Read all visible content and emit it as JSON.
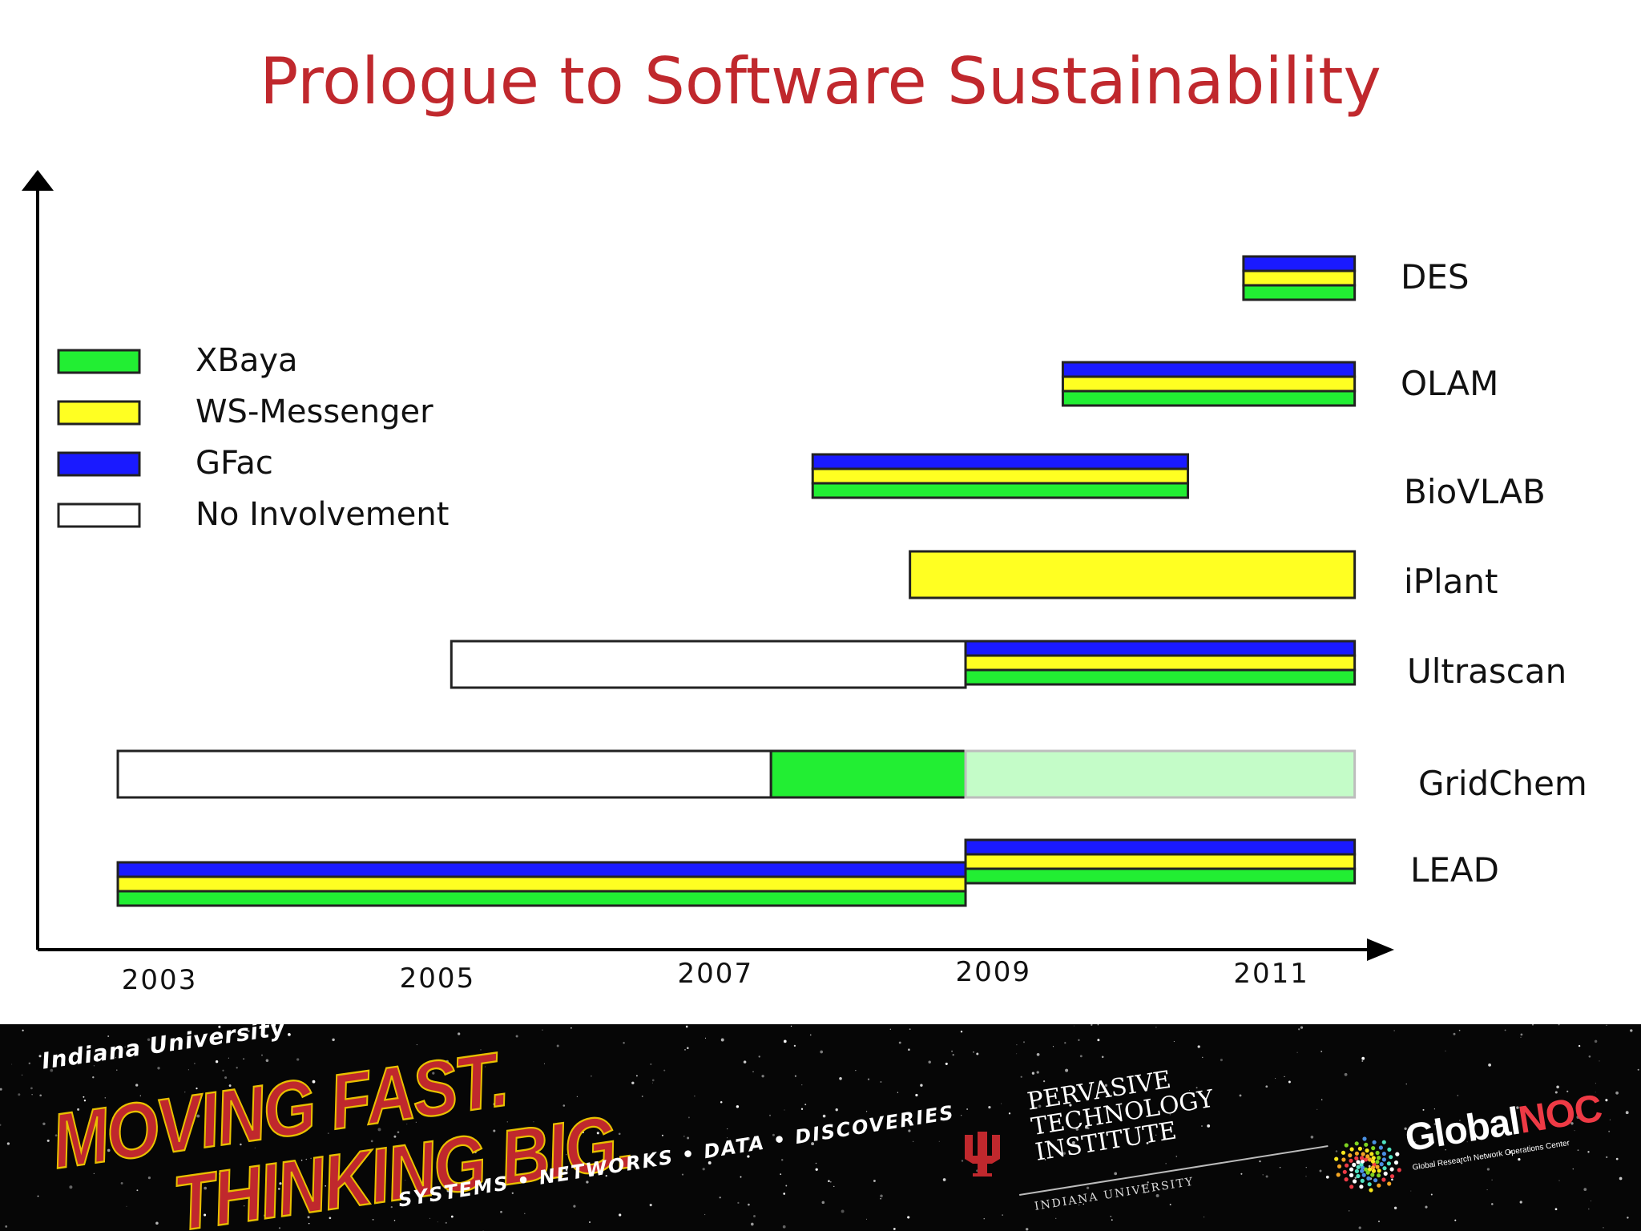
{
  "title": "Prologue to Software Sustainability",
  "colors": {
    "title": "#c0282d",
    "xbaya": "#22ee33",
    "ws_messenger": "#ffff22",
    "gfac": "#1a1aff",
    "no_involvement": "#ffffff",
    "xbaya_faded": "#c4fcc8"
  },
  "chart_data": {
    "type": "gantt",
    "title": "",
    "xlabel": "",
    "ylabel": "",
    "x_ticks": [
      "2003",
      "2005",
      "2007",
      "2009",
      "2011"
    ],
    "xlim": [
      2002.4,
      2011.7
    ],
    "grid": false,
    "legend_position": "top-left",
    "legend": [
      {
        "key": "xbaya",
        "label": "XBaya",
        "color": "#22ee33"
      },
      {
        "key": "ws_messenger",
        "label": "WS-Messenger",
        "color": "#ffff22"
      },
      {
        "key": "gfac",
        "label": "GFac",
        "color": "#1a1aff"
      },
      {
        "key": "none",
        "label": "No Involvement",
        "color": "#ffffff"
      }
    ],
    "projects": [
      {
        "name": "DES",
        "segments": [
          {
            "start": 2010.8,
            "end": 2011.6,
            "components": [
              "gfac",
              "ws_messenger",
              "xbaya"
            ]
          }
        ]
      },
      {
        "name": "OLAM",
        "segments": [
          {
            "start": 2009.5,
            "end": 2011.6,
            "components": [
              "gfac",
              "ws_messenger",
              "xbaya"
            ]
          }
        ]
      },
      {
        "name": "BioVLAB",
        "segments": [
          {
            "start": 2007.7,
            "end": 2010.4,
            "components": [
              "gfac",
              "ws_messenger",
              "xbaya"
            ]
          }
        ]
      },
      {
        "name": "iPlant",
        "segments": [
          {
            "start": 2008.4,
            "end": 2011.6,
            "components": [
              "ws_messenger"
            ]
          }
        ]
      },
      {
        "name": "Ultrascan",
        "segments": [
          {
            "start": 2005.1,
            "end": 2008.8,
            "components": [
              "none"
            ]
          },
          {
            "start": 2008.8,
            "end": 2011.6,
            "components": [
              "gfac",
              "ws_messenger",
              "xbaya"
            ]
          }
        ]
      },
      {
        "name": "GridChem",
        "segments": [
          {
            "start": 2002.7,
            "end": 2007.4,
            "components": [
              "none"
            ]
          },
          {
            "start": 2007.4,
            "end": 2008.8,
            "components": [
              "xbaya"
            ]
          },
          {
            "start": 2008.8,
            "end": 2011.6,
            "components": [
              "xbaya_faded"
            ]
          }
        ]
      },
      {
        "name": "LEAD",
        "segments": [
          {
            "start": 2002.7,
            "end": 2008.8,
            "components": [
              "gfac",
              "ws_messenger",
              "xbaya"
            ]
          },
          {
            "start": 2008.8,
            "end": 2011.6,
            "components": [
              "gfac",
              "ws_messenger",
              "xbaya"
            ]
          }
        ]
      }
    ]
  },
  "footer": {
    "university": "Indiana University",
    "slogan_line1": "MOVING FAST.",
    "slogan_line2": "THINKING BIG.",
    "tagline": "SYSTEMS • NETWORKS • DATA • DISCOVERIES",
    "pti_name": "PERVASIVE TECHNOLOGY INSTITUTE",
    "pti_sub": "INDIANA UNIVERSITY",
    "noc_global": "Global",
    "noc_noc": "NOC",
    "noc_sub": "Global Research Network Operations Center"
  }
}
